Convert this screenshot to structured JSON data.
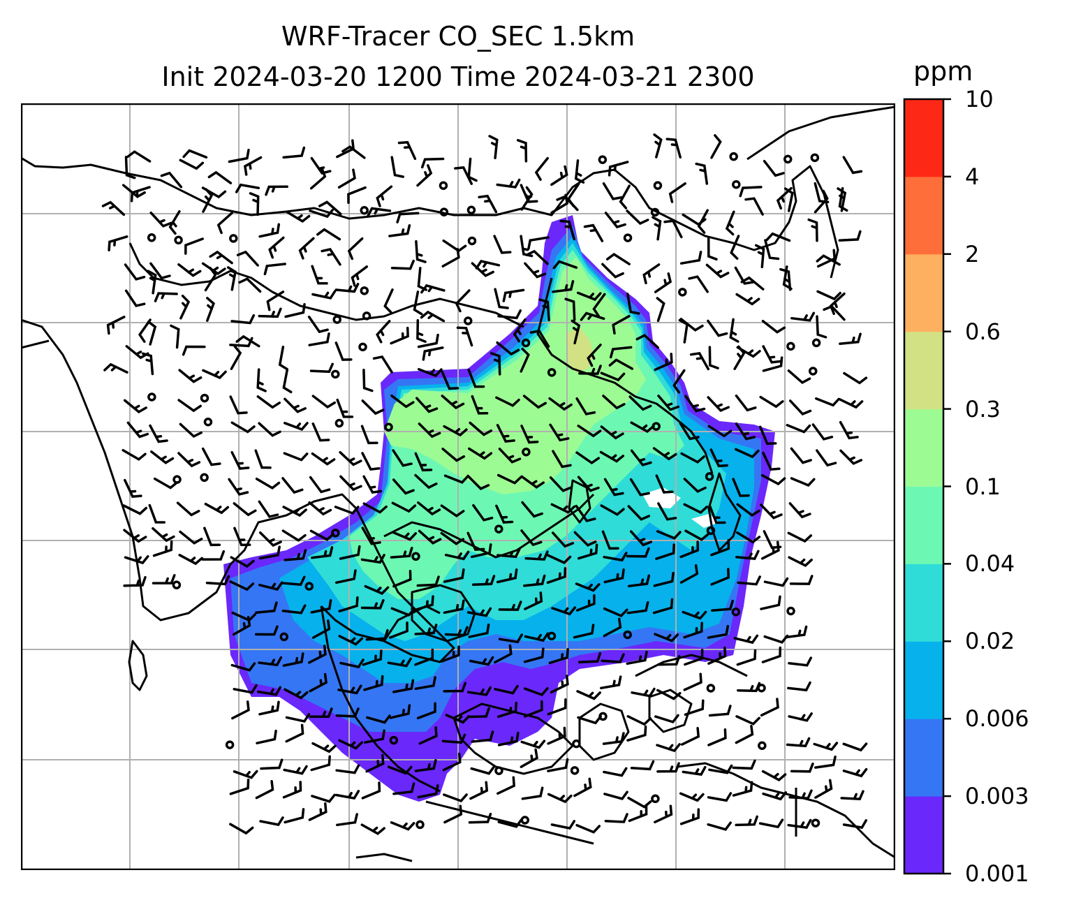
{
  "title": {
    "line1": "WRF-Tracer CO_SEC 1.5km",
    "line2": "Init 2024-03-20 1200 Time 2024-03-21 2300"
  },
  "colorbar": {
    "unit": "ppm",
    "levels": [
      "0.001",
      "0.003",
      "0.006",
      "0.02",
      "0.04",
      "0.1",
      "0.3",
      "0.6",
      "2",
      "4",
      "10"
    ],
    "colors": [
      "#6a28fb",
      "#3576f4",
      "#07b1ec",
      "#2fdcd8",
      "#6cf8b3",
      "#9dfb94",
      "#d2e184",
      "#fdb05f",
      "#fe6e3a",
      "#fe2817"
    ]
  },
  "map": {
    "gridlines": true,
    "wind_barbs": true,
    "tracer_field": "CO_SEC"
  }
}
